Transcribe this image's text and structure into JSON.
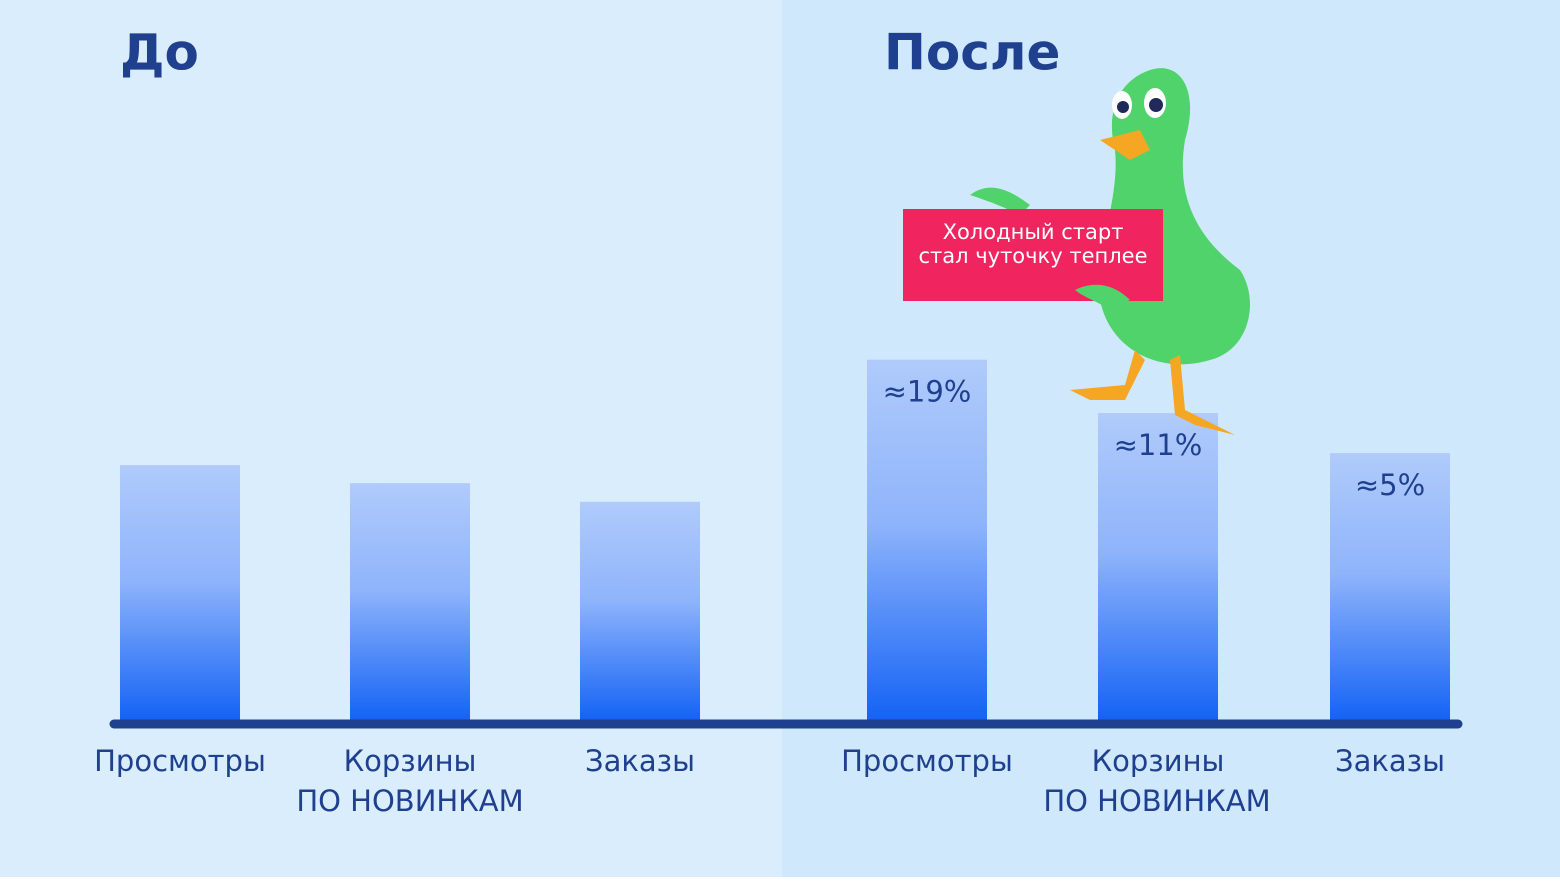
{
  "chart_data": [
    {
      "type": "bar",
      "title": "До",
      "categories": [
        "Просмотры",
        "Корзины",
        "Заказы"
      ],
      "values": [
        3.2,
        0.5,
        -2.3
      ],
      "xlabel": "ПО НОВИНКАМ",
      "ylim": [
        -35,
        20
      ],
      "color": "#1463f5"
    },
    {
      "type": "bar",
      "title": "После",
      "categories": [
        "Просмотры",
        "Корзины",
        "Заказы"
      ],
      "values": [
        19,
        11,
        5
      ],
      "value_labels": [
        "≈19%",
        "≈11%",
        "≈5%"
      ],
      "xlabel": "ПО НОВИНКАМ",
      "ylim": [
        -35,
        20
      ],
      "color": "#1463f5",
      "annotation": [
        "Холодный старт",
        "стал чуточку теплее"
      ]
    }
  ]
}
